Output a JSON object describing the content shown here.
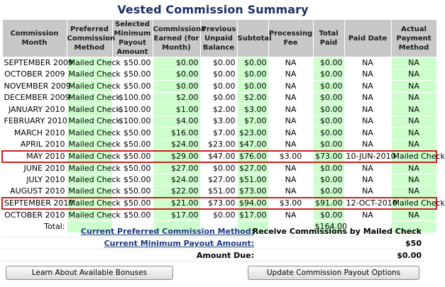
{
  "title": "Vested Commission Summary",
  "headers": [
    "Commission Month",
    "Preferred Commission Method",
    "Selected Minimum Payout Amount",
    "Commissions Earned (for Month)",
    "Previous Unpaid Balance",
    "Subtotal",
    "Processing Fee",
    "Total Paid",
    "Paid Date",
    "Actual Payment Method"
  ],
  "rows": [
    [
      "SEPTEMBER 2009",
      "Mailed Check",
      "$50.00",
      "$0.00",
      "$0.00",
      "$0.00",
      "NA",
      "$0.00",
      "NA",
      "NA"
    ],
    [
      "OCTOBER 2009",
      "Mailed Check",
      "$50.00",
      "$0.00",
      "$0.00",
      "$0.00",
      "NA",
      "$0.00",
      "NA",
      "NA"
    ],
    [
      "NOVEMBER 2009",
      "Mailed Check",
      "$50.00",
      "$0.00",
      "$0.00",
      "$0.00",
      "NA",
      "$0.00",
      "NA",
      "NA"
    ],
    [
      "DECEMBER 2009",
      "Mailed Check",
      "$100.00",
      "$2.00",
      "$0.00",
      "$2.00",
      "NA",
      "$0.00",
      "NA",
      "NA"
    ],
    [
      "JANUARY 2010",
      "Mailed Check",
      "$100.00",
      "$1.00",
      "$2.00",
      "$3.00",
      "NA",
      "$0.00",
      "NA",
      "NA"
    ],
    [
      "FEBRUARY 2010",
      "Mailed Check",
      "$100.00",
      "$4.00",
      "$3.00",
      "$7.00",
      "NA",
      "$0.00",
      "NA",
      "NA"
    ],
    [
      "MARCH 2010",
      "Mailed Check",
      "$50.00",
      "$16.00",
      "$7.00",
      "$23.00",
      "NA",
      "$0.00",
      "NA",
      "NA"
    ],
    [
      "APRIL 2010",
      "Mailed Check",
      "$50.00",
      "$24.00",
      "$23.00",
      "$47.00",
      "NA",
      "$0.00",
      "NA",
      "NA"
    ],
    [
      "MAY 2010",
      "Mailed Check",
      "$50.00",
      "$29.00",
      "$47.00",
      "$76.00",
      "$3.00",
      "$73.00",
      "10-JUN-2010",
      "Mailed Check"
    ],
    [
      "JUNE 2010",
      "Mailed Check",
      "$50.00",
      "$27.00",
      "$0.00",
      "$27.00",
      "NA",
      "$0.00",
      "NA",
      "NA"
    ],
    [
      "JULY 2010",
      "Mailed Check",
      "$50.00",
      "$24.00",
      "$27.00",
      "$51.00",
      "NA",
      "$0.00",
      "NA",
      "NA"
    ],
    [
      "AUGUST 2010",
      "Mailed Check",
      "$50.00",
      "$22.00",
      "$51.00",
      "$73.00",
      "NA",
      "$0.00",
      "NA",
      "NA"
    ],
    [
      "SEPTEMBER 2010",
      "Mailed Check",
      "$50.00",
      "$21.00",
      "$73.00",
      "$94.00",
      "$3.00",
      "$91.00",
      "12-OCT-2010",
      "Mailed Check"
    ],
    [
      "OCTOBER 2010",
      "Mailed Check",
      "$50.00",
      "$17.00",
      "$0.00",
      "$17.00",
      "NA",
      "$0.00",
      "NA",
      "NA"
    ]
  ],
  "highlighted_rows": [
    8,
    12
  ],
  "total_row": {
    "label": "Total:",
    "total_paid": "$164.00"
  },
  "summary": {
    "preferred_method_label": "Current Preferred Commission Method:",
    "preferred_method_value": "Receive Commissions by Mailed Check",
    "min_payout_label": "Current Minimum Payout Amount:",
    "min_payout_value": "$50",
    "amount_due_label": "Amount Due:",
    "amount_due_value": "$0.00"
  },
  "buttons": {
    "bonuses": "Learn About Available Bonuses",
    "update_options": "Update Commission Payout Options"
  },
  "colors": {
    "header_bg": "#c8c8c8",
    "green_cell": "#ccffcc",
    "title": "#1b2f63",
    "link": "#1b3a80",
    "highlight_border": "#cc2222"
  }
}
